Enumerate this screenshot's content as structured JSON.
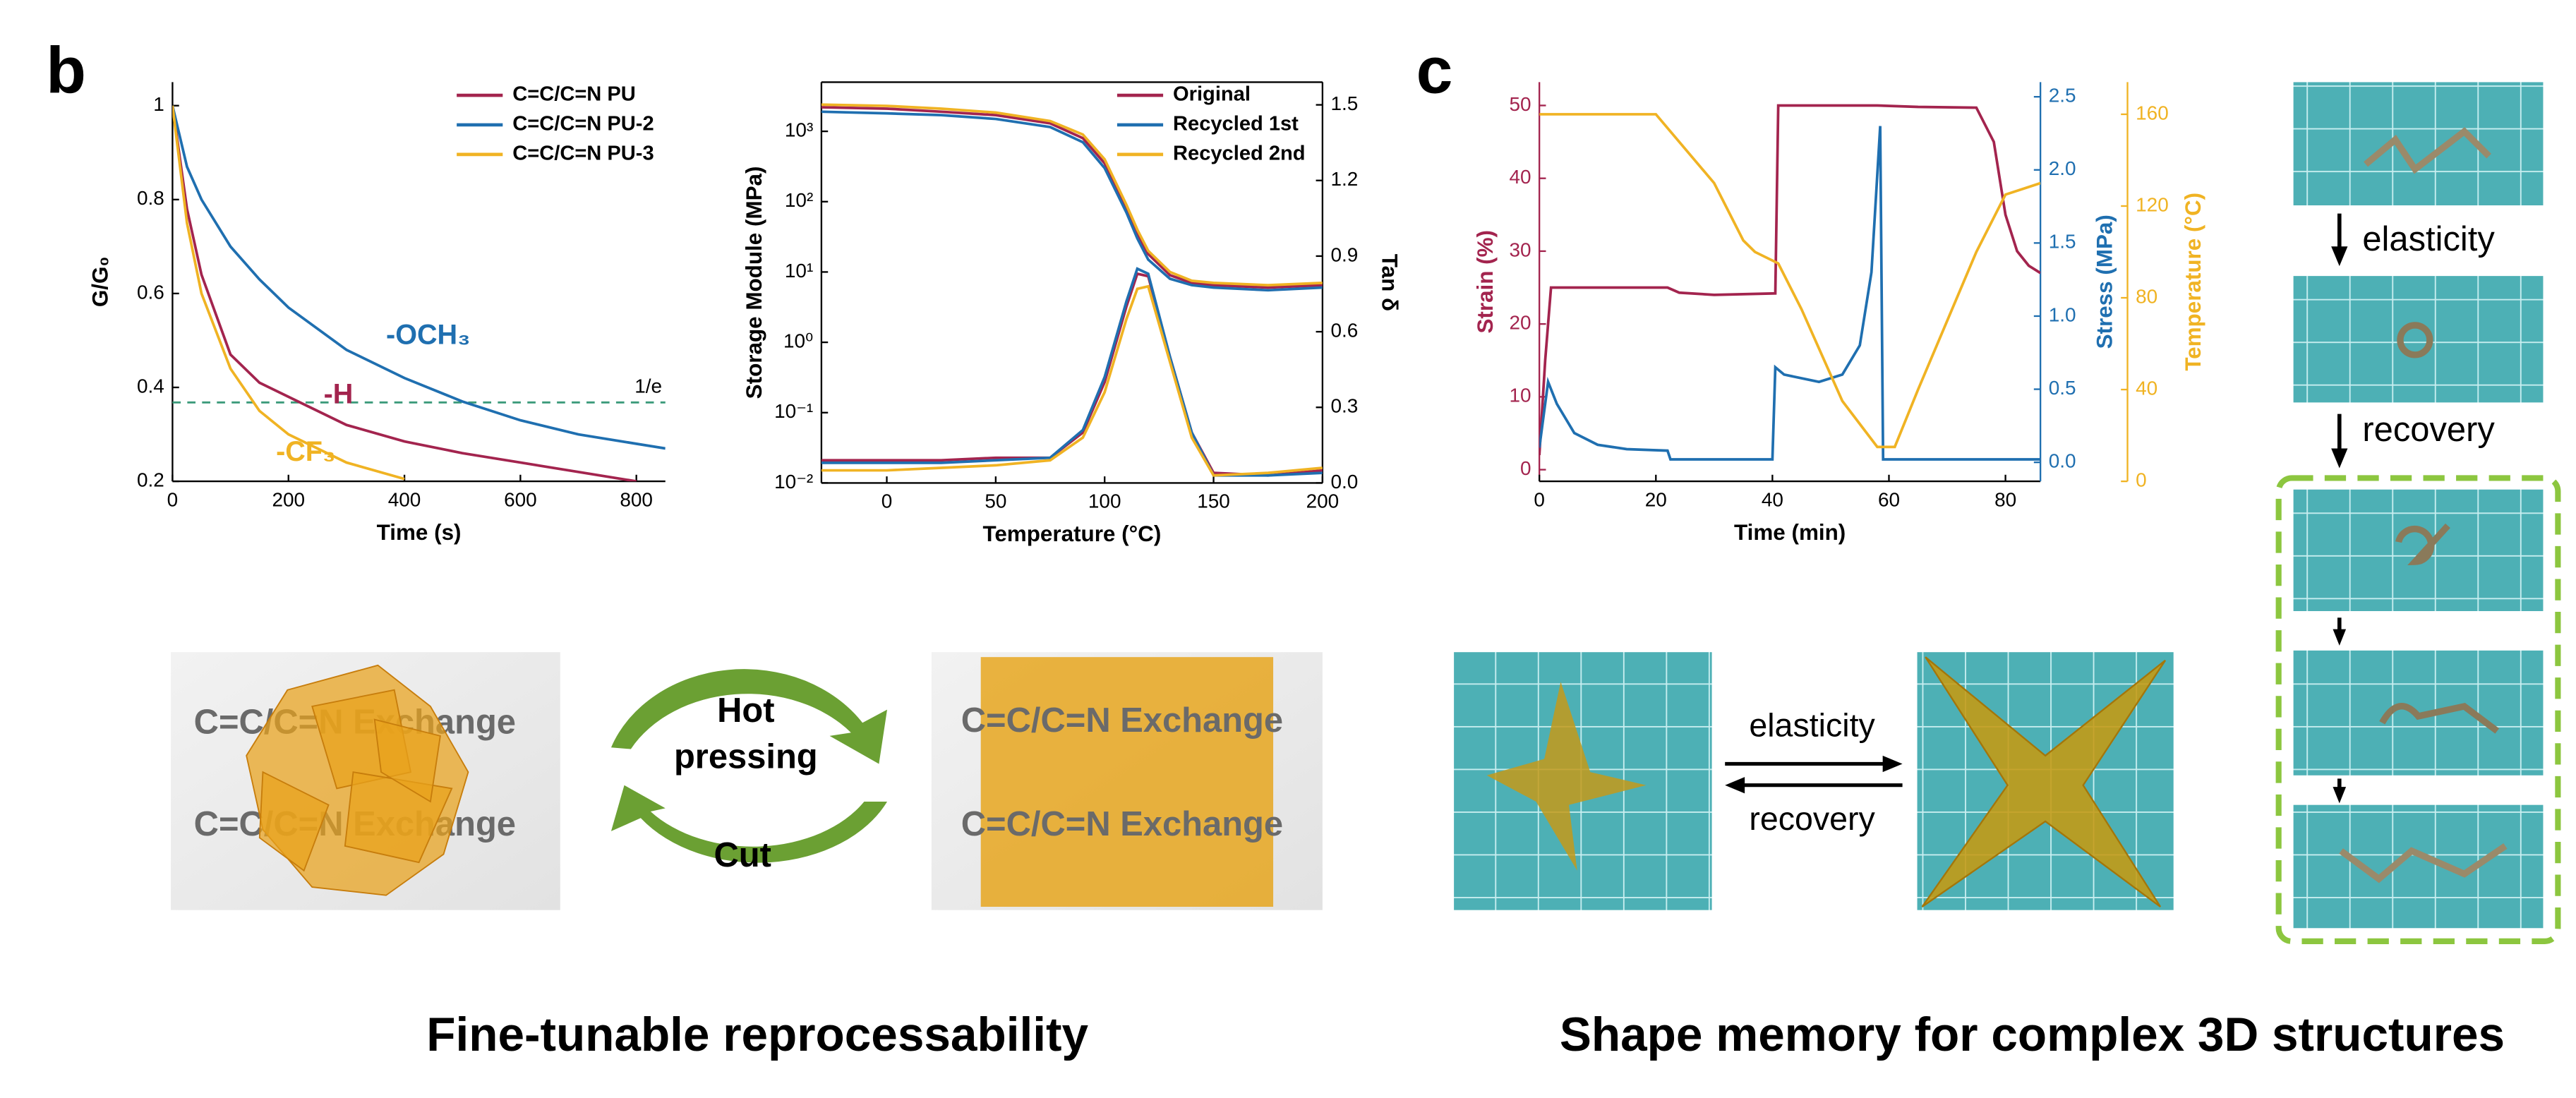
{
  "panel_labels": [
    "b",
    "c"
  ],
  "captions": [
    "Fine-tunable reprocessability",
    "Shape memory for complex 3D structures"
  ],
  "reprocess": {
    "photo_label": "C=C/C=N Exchange",
    "hot_pressing": [
      "Hot",
      "pressing"
    ],
    "cut": "Cut"
  },
  "shape_memory": {
    "forward": "elasticity",
    "back": "recovery"
  },
  "chart_data": [
    {
      "type": "line",
      "xlabel": "Time (s)",
      "ylabel": "G/G₀",
      "x": [
        0,
        25,
        50,
        100,
        150,
        200,
        300,
        400,
        500,
        600,
        700,
        800,
        850
      ],
      "series": [
        {
          "name": "C=C/C=N PU",
          "color": "#a3244e",
          "values": [
            1.0,
            0.78,
            0.64,
            0.47,
            0.41,
            0.38,
            0.32,
            0.285,
            0.26,
            0.24,
            0.22,
            0.2,
            null
          ]
        },
        {
          "name": "C=C/C=N PU-2",
          "color": "#1f6fb0",
          "values": [
            1.0,
            0.87,
            0.8,
            0.7,
            0.63,
            0.57,
            0.48,
            0.42,
            0.37,
            0.33,
            0.3,
            0.28,
            0.27
          ]
        },
        {
          "name": "C=C/C=N PU-3",
          "color": "#f0b323",
          "values": [
            1.0,
            0.75,
            0.6,
            0.44,
            0.35,
            0.3,
            0.24,
            0.205,
            null,
            null,
            null,
            null,
            null
          ]
        }
      ],
      "annotations": [
        "-H",
        "-OCH₃",
        "-CF₃"
      ],
      "hline": {
        "value": 0.368,
        "label": "1/e"
      },
      "xlim": [
        0,
        850
      ],
      "ylim": [
        0.2,
        1.05
      ],
      "xticks": [
        0,
        200,
        400,
        600,
        800
      ],
      "yticks": [
        0.2,
        0.4,
        0.6,
        0.8,
        1.0
      ],
      "legend": "upper right"
    },
    {
      "type": "line",
      "xlabel": "Temperature (°C)",
      "ylabel": "Storage Module (MPa)",
      "y2label": "Tan δ",
      "x": [
        -30,
        0,
        25,
        50,
        75,
        90,
        100,
        110,
        115,
        120,
        130,
        140,
        150,
        175,
        200
      ],
      "series": [
        {
          "name": "Original",
          "color": "#a3244e",
          "values": [
            2200,
            2100,
            1900,
            1700,
            1300,
            800,
            350,
            80,
            35,
            18,
            9,
            7,
            6.5,
            6,
            6.5
          ],
          "y2_values": [
            0.09,
            0.09,
            0.09,
            0.1,
            0.1,
            0.2,
            0.4,
            0.7,
            0.83,
            0.82,
            0.5,
            0.2,
            0.04,
            0.03,
            0.05
          ]
        },
        {
          "name": "Recycled 1st",
          "color": "#1f6fb0",
          "values": [
            1900,
            1800,
            1700,
            1500,
            1150,
            700,
            300,
            70,
            30,
            15,
            8,
            6.5,
            6,
            5.5,
            6
          ],
          "y2_values": [
            0.08,
            0.08,
            0.08,
            0.09,
            0.1,
            0.21,
            0.42,
            0.72,
            0.85,
            0.83,
            0.5,
            0.2,
            0.03,
            0.03,
            0.04
          ]
        },
        {
          "name": "Recycled 2nd",
          "color": "#f0b323",
          "values": [
            2400,
            2300,
            2100,
            1850,
            1400,
            900,
            400,
            90,
            40,
            20,
            10,
            7.5,
            7,
            6.5,
            7
          ],
          "y2_values": [
            0.05,
            0.05,
            0.06,
            0.07,
            0.09,
            0.18,
            0.36,
            0.65,
            0.77,
            0.78,
            0.48,
            0.18,
            0.03,
            0.04,
            0.06
          ]
        }
      ],
      "xlim": [
        -30,
        200
      ],
      "ylim": [
        0.01,
        5000
      ],
      "ylog": true,
      "y2lim": [
        0,
        1.59
      ],
      "box": true,
      "xticks": [
        0,
        50,
        100,
        150,
        200
      ],
      "yticks": [
        {
          "value": 0.01,
          "label": "10⁻²"
        },
        {
          "value": 0.1,
          "label": "10⁻¹"
        },
        {
          "value": 1,
          "label": "10⁰"
        },
        {
          "value": 10,
          "label": "10¹"
        },
        {
          "value": 100,
          "label": "10²"
        },
        {
          "value": 1000,
          "label": "10³"
        }
      ],
      "y2ticks": [
        {
          "value": 0,
          "label": "0.0"
        },
        0.3,
        0.6,
        0.9,
        1.2,
        1.5
      ],
      "legend": "upper right"
    },
    {
      "type": "line",
      "xlabel": "Time (min)",
      "ylabel": "Strain (%)",
      "y2label": "Stress (MPa)",
      "y3label": "Temperature (°C)",
      "series": [
        {
          "name": "Strain",
          "color": "#a3244e",
          "x": [
            0,
            1,
            2,
            22,
            24,
            30,
            40.5,
            41,
            58,
            65,
            75,
            78,
            80,
            82,
            84,
            86
          ],
          "values": [
            2,
            15,
            25,
            25,
            24.3,
            24,
            24.2,
            50,
            50,
            49.8,
            49.7,
            45,
            35,
            30,
            28,
            27
          ]
        },
        {
          "name": "Stress",
          "color": "#1f6fb0",
          "axis": "y2",
          "x": [
            0,
            1.5,
            3,
            6,
            10,
            15,
            22,
            22.5,
            40,
            40.5,
            42,
            48,
            52,
            55,
            57,
            58.5,
            59,
            86
          ],
          "values": [
            0.1,
            0.55,
            0.4,
            0.2,
            0.12,
            0.09,
            0.08,
            0.02,
            0.02,
            0.65,
            0.6,
            0.55,
            0.6,
            0.8,
            1.3,
            2.3,
            0.02,
            0.02
          ]
        },
        {
          "name": "Temperature",
          "color": "#f0b323",
          "axis": "y3",
          "x": [
            0,
            20,
            30,
            35,
            37,
            41,
            45,
            52,
            58,
            61,
            65,
            75,
            80,
            86
          ],
          "values": [
            160,
            160,
            130,
            105,
            100,
            95,
            75,
            35,
            15,
            15,
            40,
            100,
            125,
            130
          ]
        }
      ],
      "xlim": [
        0,
        86
      ],
      "ylim": [
        -1.6,
        53.2
      ],
      "y2lim": [
        -0.13,
        2.6
      ],
      "y3lim": [
        0,
        174
      ],
      "xticks": [
        0,
        20,
        40,
        60,
        80
      ],
      "yticks": [
        0,
        10,
        20,
        30,
        40,
        50
      ],
      "y2ticks": [
        {
          "value": 0,
          "label": "0.0"
        },
        0.5,
        {
          "value": 1,
          "label": "1.0"
        },
        1.5,
        {
          "value": 2,
          "label": "2.0"
        },
        2.5
      ],
      "y3ticks": [
        0,
        40,
        80,
        120,
        160
      ],
      "color_axes": true
    }
  ]
}
